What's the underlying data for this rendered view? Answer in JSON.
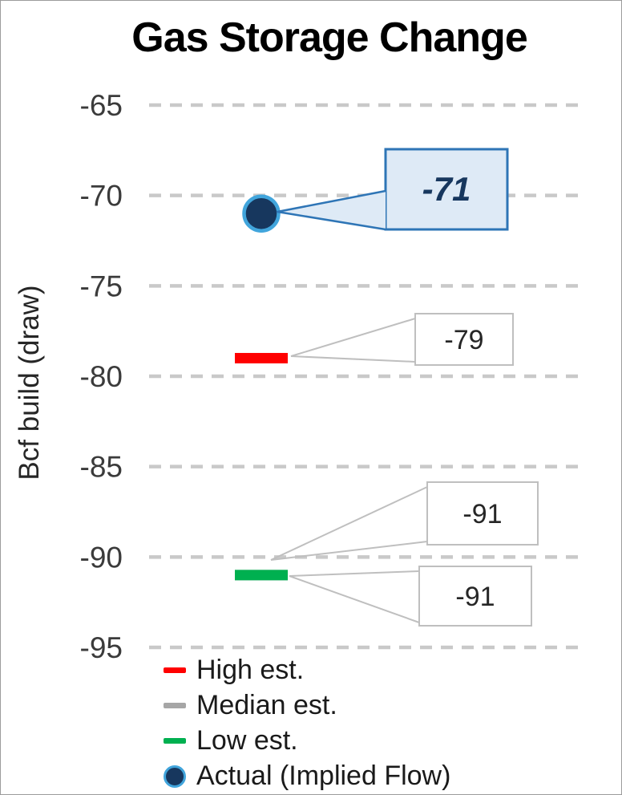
{
  "title": "Gas Storage Change",
  "y_axis_label": "Bcf build (draw)",
  "chart_data": {
    "type": "scatter",
    "title": "Gas Storage Change",
    "ylabel": "Bcf build (draw)",
    "ylim": [
      -95,
      -65
    ],
    "yticks": [
      -65,
      -70,
      -75,
      -80,
      -85,
      -90,
      -95
    ],
    "grid": {
      "horizontal": true,
      "style": "dashed",
      "color": "#C9C9C9"
    },
    "legend_position": "bottom-left",
    "series": [
      {
        "name": "High est.",
        "value": -79,
        "marker": "dash",
        "color": "#FF0000",
        "callout": {
          "label": "-79",
          "style": "plain"
        }
      },
      {
        "name": "Median est.",
        "value": -91,
        "marker": "dash",
        "color": "#A6A6A6",
        "callout": {
          "label": "-91",
          "style": "plain"
        }
      },
      {
        "name": "Low est.",
        "value": -91,
        "marker": "dash",
        "color": "#00B050",
        "callout": {
          "label": "-91",
          "style": "plain"
        }
      },
      {
        "name": "Actual (Implied Flow)",
        "value": -71,
        "marker": "circle",
        "color": "#17375E",
        "outline": "#41A5DC",
        "callout": {
          "label": "-71",
          "style": "emphasis",
          "fill": "#DEEAF6",
          "border": "#2E75B6"
        }
      }
    ],
    "callout_style": {
      "plain_fill": "#FFFFFF",
      "plain_border": "#BFBFBF",
      "leader_color": "#BFBFBF",
      "text_color": "#262626",
      "emphasis_text_color": "#17375E"
    }
  }
}
